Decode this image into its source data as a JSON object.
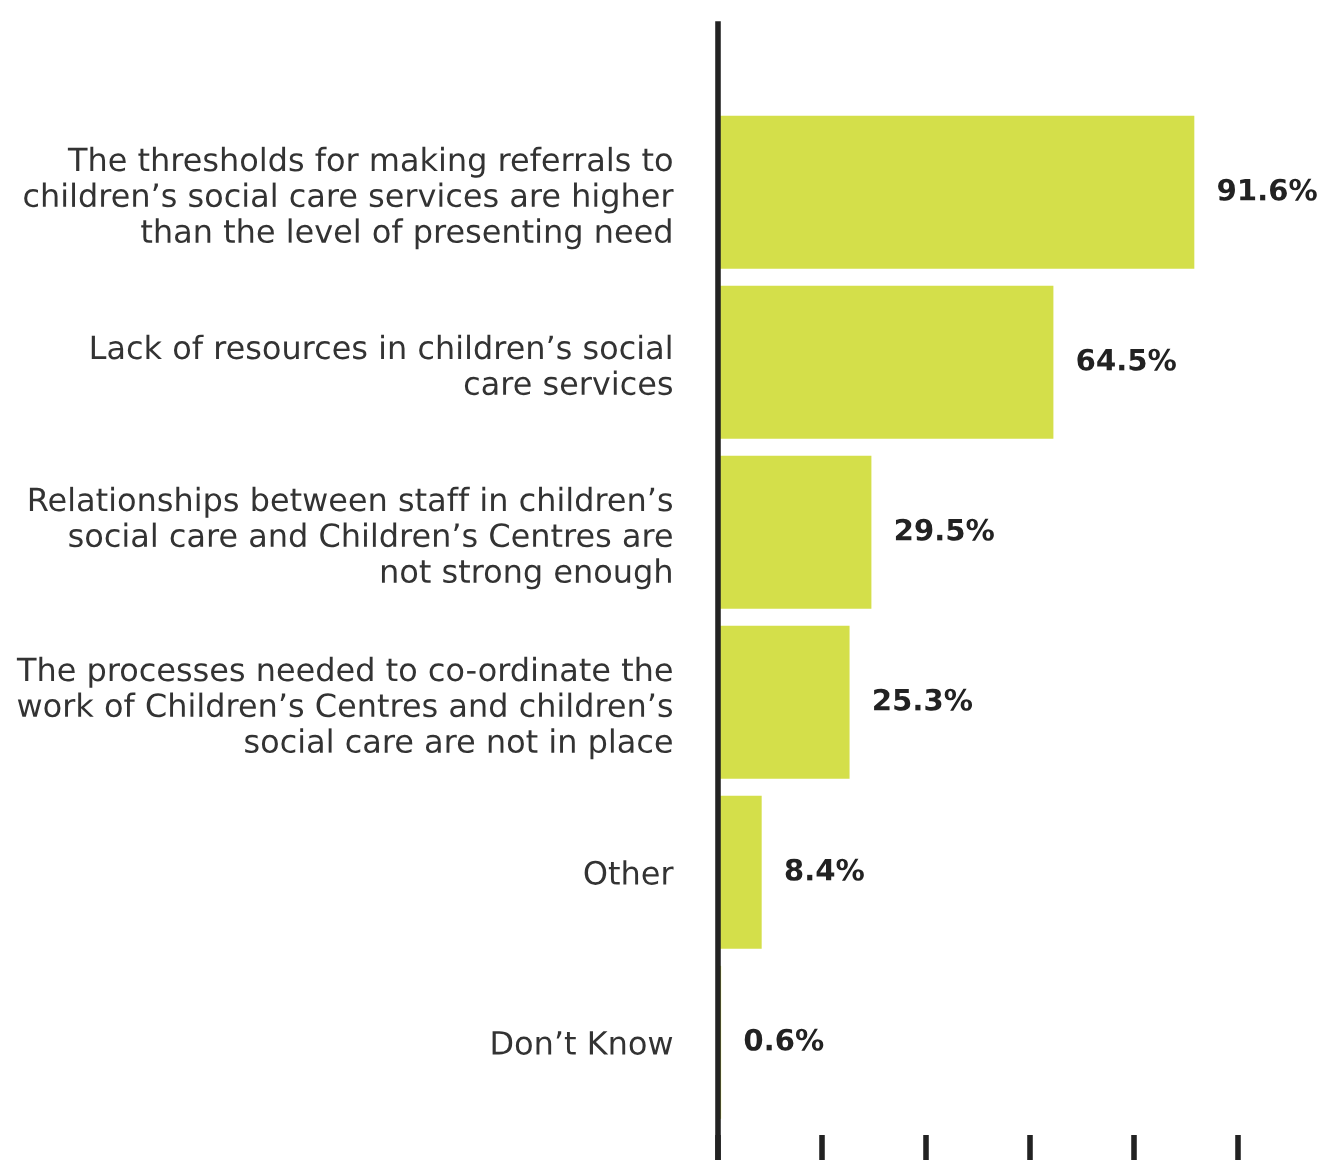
{
  "chart_data": {
    "type": "bar",
    "orientation": "horizontal",
    "categories": [
      "The thresholds for making referrals to\nchildren’s social care services are higher\nthan the level of presenting need",
      "Lack of resources in children’s social\ncare services",
      "Relationships between staff in children’s\nsocial care and Children’s Centres are\nnot strong enough",
      "The processes needed to co-ordinate the\nwork of Children’s Centres and children’s\nsocial care are not in place",
      "Other",
      "Don’t Know"
    ],
    "values": [
      91.6,
      64.5,
      29.5,
      25.3,
      8.4,
      0.6
    ],
    "value_labels": [
      "91.6%",
      "64.5%",
      "29.5%",
      "25.3%",
      "8.4%",
      "0.6%"
    ],
    "color": "#d4df4a",
    "xticks": [
      {
        "value": 0,
        "label": null
      },
      {
        "value": 20,
        "label": null
      },
      {
        "value": 40,
        "label": null
      },
      {
        "value": 60,
        "label": null
      },
      {
        "value": 80,
        "label": null
      },
      {
        "value": 100,
        "label": null
      }
    ],
    "tick_labels": "y",
    "grid": false,
    "legend": false
  }
}
